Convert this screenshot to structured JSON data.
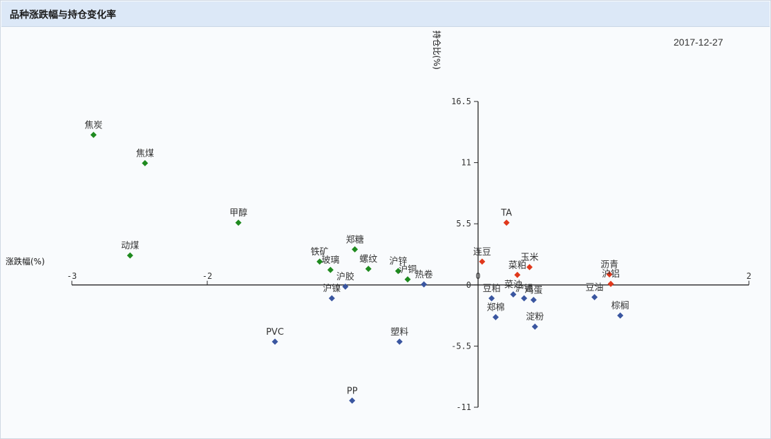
{
  "header": {
    "title": "品种涨跌幅与持仓变化率"
  },
  "chart_data": {
    "type": "scatter",
    "title": "品种涨跌幅与持仓变化率",
    "date": "2017-12-27",
    "xlabel": "涨跌幅(%)",
    "ylabel": "持仓比(%)",
    "xlim": [
      -3,
      2
    ],
    "ylim": [
      -11,
      16.5
    ],
    "x_ticks": [
      -3,
      -2,
      0,
      2
    ],
    "y_ticks": [
      16.5,
      11,
      5.5,
      0,
      -5.5,
      -11
    ],
    "colors": {
      "green": "#1f8a1f",
      "red": "#e0381c",
      "blue": "#3a56a0"
    },
    "points": [
      {
        "name": "焦炭",
        "x": -2.84,
        "y": 13.5,
        "group": "green"
      },
      {
        "name": "焦煤",
        "x": -2.46,
        "y": 10.95,
        "group": "green"
      },
      {
        "name": "甲醇",
        "x": -1.77,
        "y": 5.6,
        "group": "green"
      },
      {
        "name": "动煤",
        "x": -2.57,
        "y": 2.65,
        "group": "green"
      },
      {
        "name": "铁矿",
        "x": -1.17,
        "y": 2.1,
        "group": "green"
      },
      {
        "name": "郑糖",
        "x": -0.91,
        "y": 3.2,
        "group": "green"
      },
      {
        "name": "玻璃",
        "x": -1.09,
        "y": 1.35,
        "group": "green"
      },
      {
        "name": "螺纹",
        "x": -0.81,
        "y": 1.45,
        "group": "green"
      },
      {
        "name": "沪锌",
        "x": -0.59,
        "y": 1.25,
        "group": "green"
      },
      {
        "name": "沪铜",
        "x": -0.52,
        "y": 0.5,
        "group": "green"
      },
      {
        "name": "TA",
        "x": 0.21,
        "y": 5.6,
        "group": "red"
      },
      {
        "name": "连豆",
        "x": 0.03,
        "y": 2.1,
        "group": "red"
      },
      {
        "name": "菜粕",
        "x": 0.29,
        "y": 0.9,
        "group": "red"
      },
      {
        "name": "玉米",
        "x": 0.38,
        "y": 1.6,
        "group": "red"
      },
      {
        "name": "沥青",
        "x": 0.97,
        "y": 0.95,
        "group": "red"
      },
      {
        "name": "沪铝",
        "x": 0.98,
        "y": 0.1,
        "group": "red"
      },
      {
        "name": "沪胶",
        "x": -0.98,
        "y": -0.15,
        "group": "blue"
      },
      {
        "name": "沪镍",
        "x": -1.08,
        "y": -1.2,
        "group": "blue"
      },
      {
        "name": "热卷",
        "x": -0.4,
        "y": 0.05,
        "group": "blue"
      },
      {
        "name": "PVC",
        "x": -1.5,
        "y": -5.1,
        "group": "blue"
      },
      {
        "name": "塑料",
        "x": -0.58,
        "y": -5.1,
        "group": "blue"
      },
      {
        "name": "PP",
        "x": -0.93,
        "y": -10.4,
        "group": "blue"
      },
      {
        "name": "豆粕",
        "x": 0.1,
        "y": -1.2,
        "group": "blue"
      },
      {
        "name": "菜油",
        "x": 0.26,
        "y": -0.85,
        "group": "blue"
      },
      {
        "name": "沪锡",
        "x": 0.34,
        "y": -1.2,
        "group": "blue"
      },
      {
        "name": "鸡蛋",
        "x": 0.41,
        "y": -1.35,
        "group": "blue"
      },
      {
        "name": "郑棉",
        "x": 0.13,
        "y": -2.9,
        "group": "blue"
      },
      {
        "name": "淀粉",
        "x": 0.42,
        "y": -3.75,
        "group": "blue"
      },
      {
        "name": "豆油",
        "x": 0.86,
        "y": -1.1,
        "group": "blue"
      },
      {
        "name": "棕榈",
        "x": 1.05,
        "y": -2.75,
        "group": "blue"
      }
    ]
  }
}
